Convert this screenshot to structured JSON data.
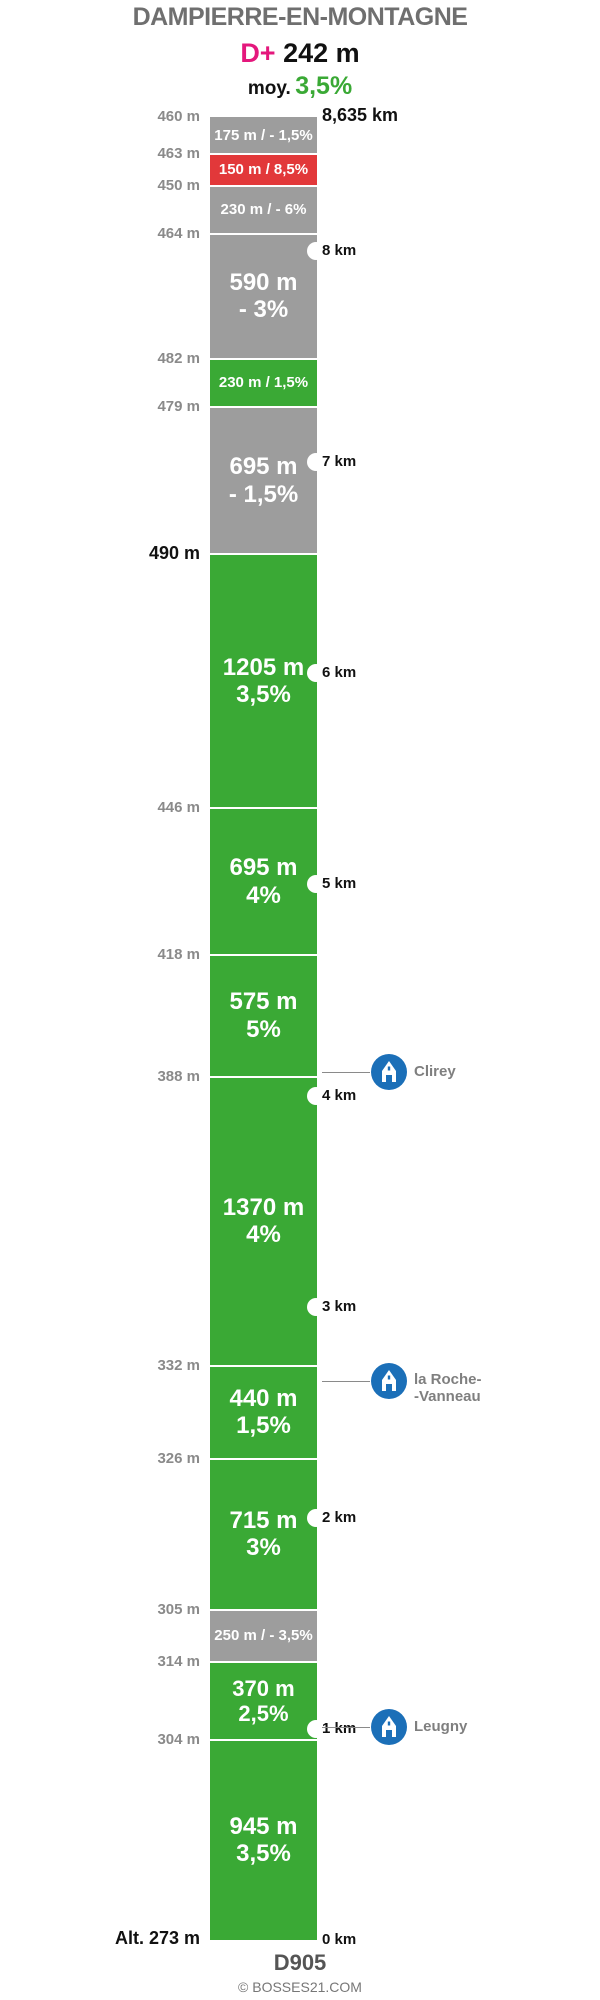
{
  "title": "DAMPIERRE-EN-MONTAGNE",
  "elevation_gain": {
    "label": "D+",
    "value": "242 m"
  },
  "average": {
    "label": "moy.",
    "value": "3,5%"
  },
  "colors": {
    "climb": "#3aa935",
    "flat_or_descent": "#9d9d9d",
    "steep": "#e2383a",
    "dplus_label": "#e4177c"
  },
  "chart_data": {
    "type": "climb-profile",
    "start_altitude_label": "Alt. 273 m",
    "total_distance_label": "8,635 km",
    "segments": [
      {
        "length_m": 945,
        "label": "945 m\n3,5%",
        "gradient": 3.5,
        "color": "green",
        "end_alt": "304 m"
      },
      {
        "length_m": 370,
        "label": "370 m\n2,5%",
        "gradient": 2.5,
        "color": "green",
        "end_alt": "314 m"
      },
      {
        "length_m": 250,
        "label": "250 m / - 3,5%",
        "gradient": -3.5,
        "color": "grey",
        "end_alt": "305 m"
      },
      {
        "length_m": 715,
        "label": "715 m\n3%",
        "gradient": 3,
        "color": "green",
        "end_alt": "326 m"
      },
      {
        "length_m": 440,
        "label": "440 m\n1,5%",
        "gradient": 1.5,
        "color": "green",
        "end_alt": "332 m"
      },
      {
        "length_m": 1370,
        "label": "1370 m\n4%",
        "gradient": 4,
        "color": "green",
        "end_alt": "388 m"
      },
      {
        "length_m": 575,
        "label": "575 m\n5%",
        "gradient": 5,
        "color": "green",
        "end_alt": "418 m"
      },
      {
        "length_m": 695,
        "label": "695 m\n4%",
        "gradient": 4,
        "color": "green",
        "end_alt": "446 m"
      },
      {
        "length_m": 1205,
        "label": "1205 m\n3,5%",
        "gradient": 3.5,
        "color": "green",
        "end_alt": "490 m",
        "end_alt_strong": true
      },
      {
        "length_m": 695,
        "label": "695 m\n- 1,5%",
        "gradient": -1.5,
        "color": "grey",
        "end_alt": "479 m"
      },
      {
        "length_m": 230,
        "label": "230 m / 1,5%",
        "gradient": 1.5,
        "color": "green",
        "end_alt": "482 m"
      },
      {
        "length_m": 590,
        "label": "590 m\n- 3%",
        "gradient": -3,
        "color": "grey",
        "end_alt": "464 m"
      },
      {
        "length_m": 230,
        "label": "230 m / - 6%",
        "gradient": -6,
        "color": "grey",
        "end_alt": "450 m"
      },
      {
        "length_m": 150,
        "label": "150 m / 8,5%",
        "gradient": 8.5,
        "color": "red",
        "end_alt": "463 m"
      },
      {
        "length_m": 175,
        "label": "175 m / - 1,5%",
        "gradient": -1.5,
        "color": "grey",
        "end_alt": "460 m"
      }
    ],
    "km_markers": [
      {
        "km": 0,
        "label": "0 km"
      },
      {
        "km": 1,
        "label": "1 km"
      },
      {
        "km": 2,
        "label": "2 km"
      },
      {
        "km": 3,
        "label": "3 km"
      },
      {
        "km": 4,
        "label": "4 km"
      },
      {
        "km": 5,
        "label": "5 km"
      },
      {
        "km": 6,
        "label": "6 km"
      },
      {
        "km": 7,
        "label": "7 km"
      },
      {
        "km": 8,
        "label": "8 km"
      }
    ],
    "villages": [
      {
        "name": "Leugny",
        "km": 1.01
      },
      {
        "name": "la Roche-\n-Vanneau",
        "km": 2.65
      },
      {
        "name": "Clirey",
        "km": 4.11
      }
    ]
  },
  "road": "D905",
  "copyright": "© BOSSES21.COM"
}
